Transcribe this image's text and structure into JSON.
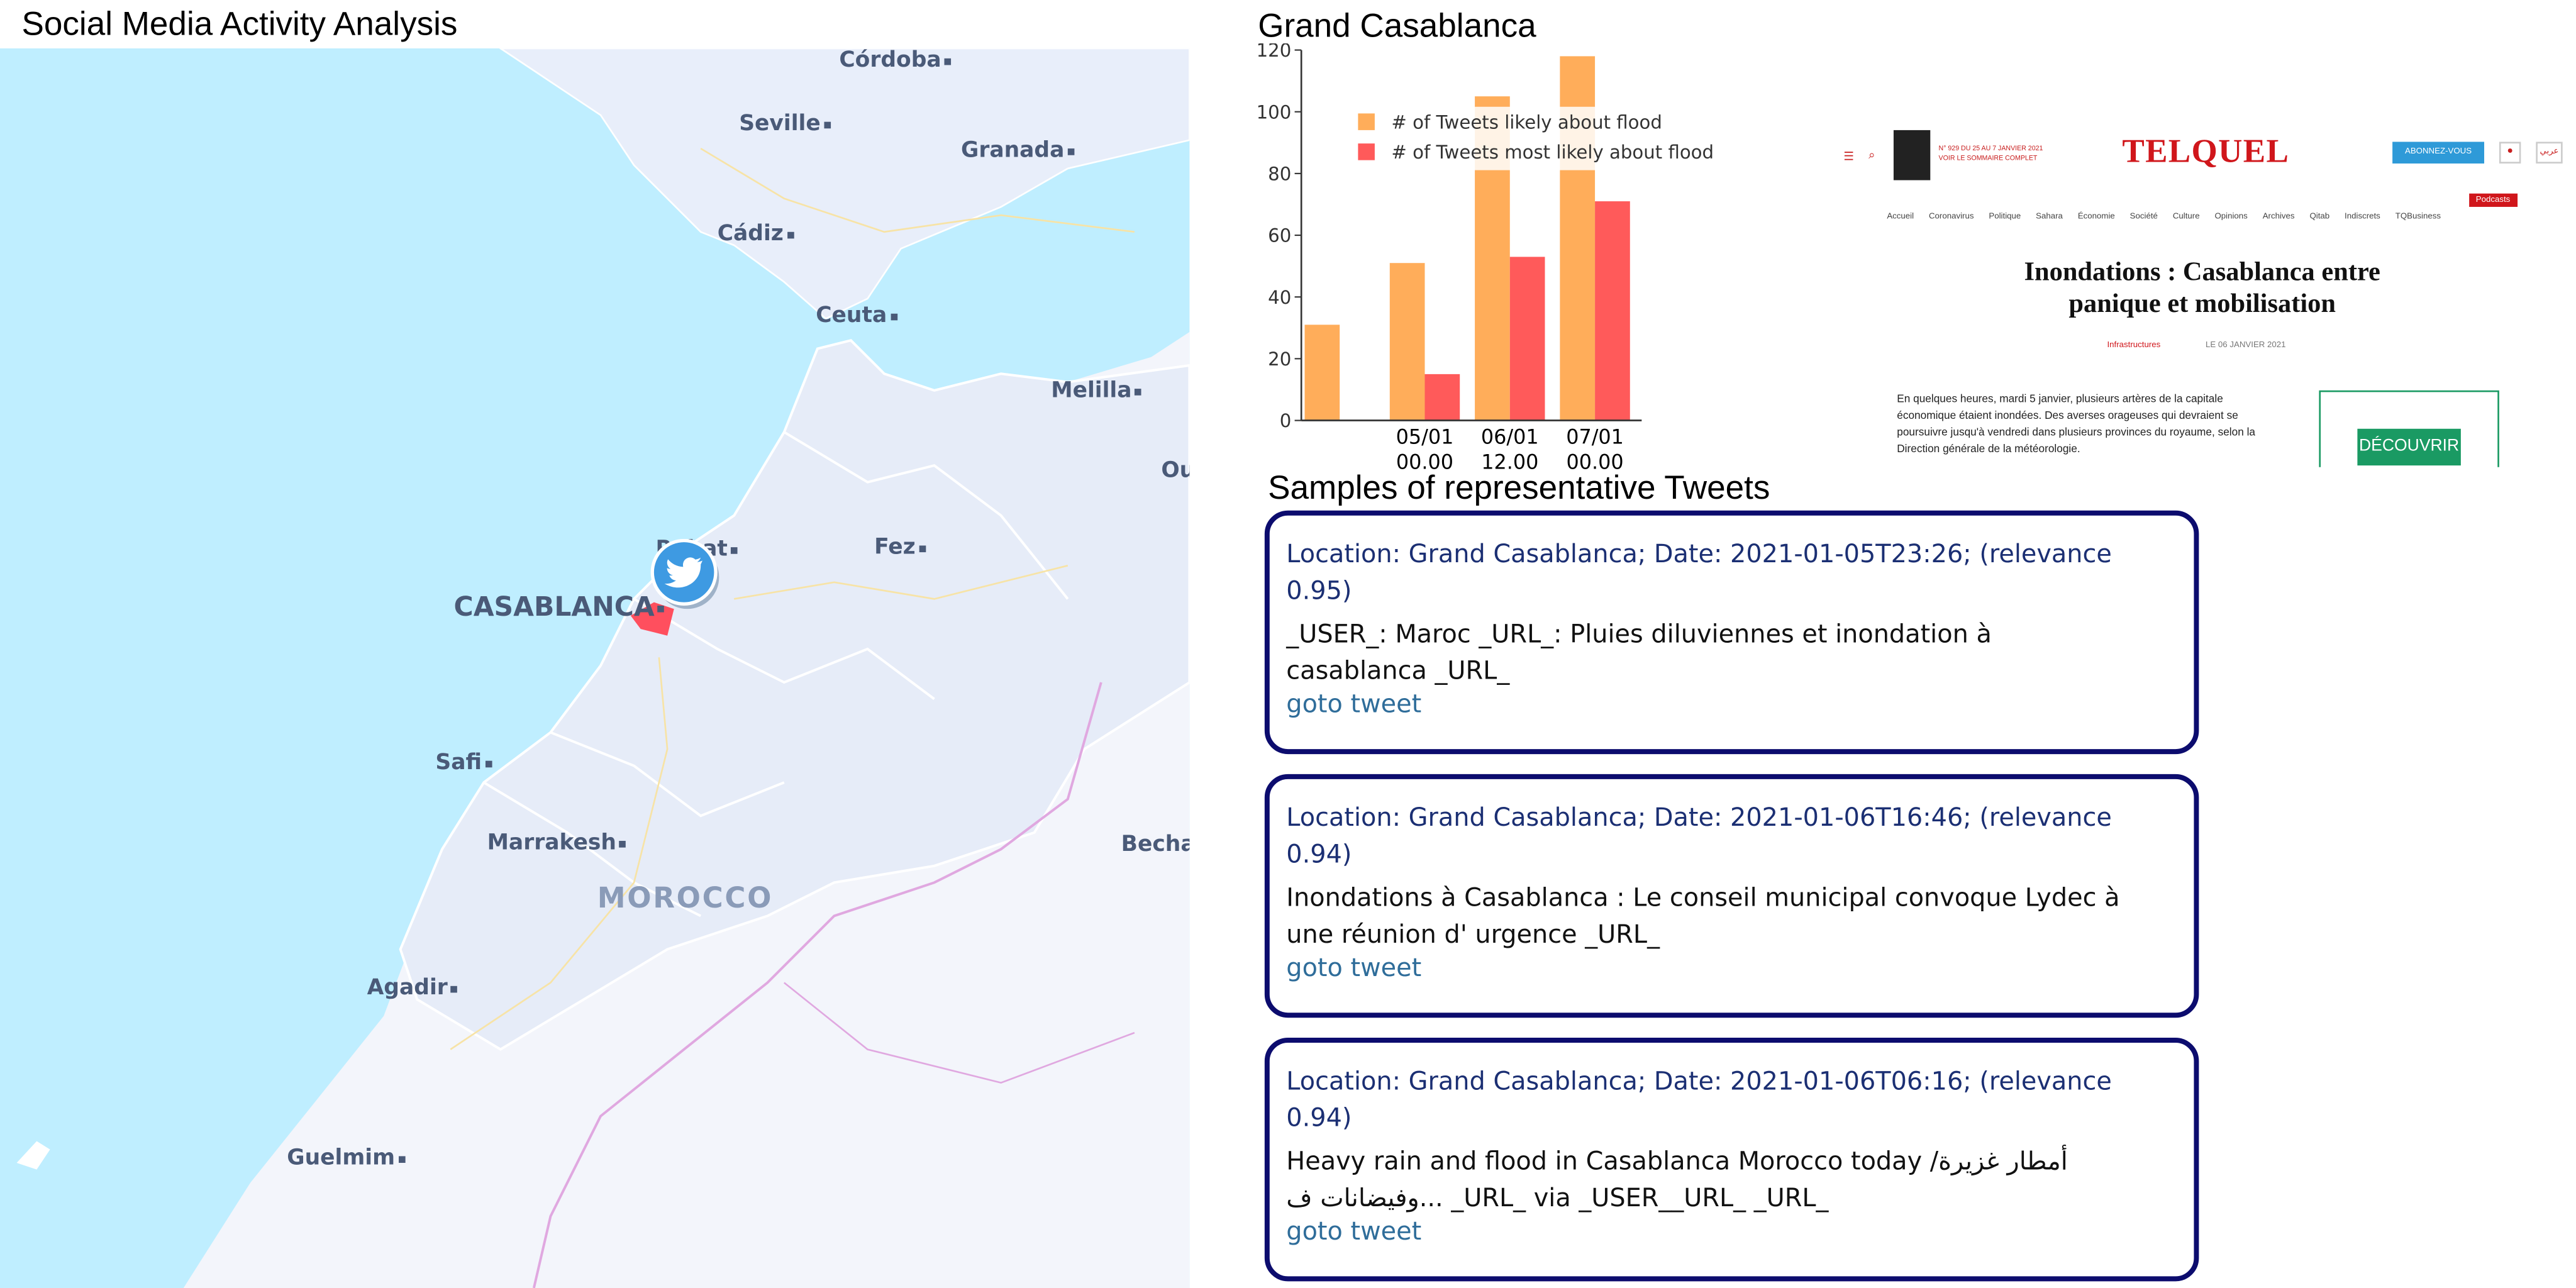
{
  "page": {
    "title": "Social Media Activity Analysis"
  },
  "map": {
    "cities": [
      {
        "name": "Córdoba",
        "id": "cordoba"
      },
      {
        "name": "Seville",
        "id": "seville"
      },
      {
        "name": "Granada",
        "id": "granada"
      },
      {
        "name": "Cádiz",
        "id": "cadiz"
      },
      {
        "name": "Ceuta",
        "id": "ceuta"
      },
      {
        "name": "Melilla",
        "id": "melilla"
      },
      {
        "name": "Ou",
        "id": "ou"
      },
      {
        "name": "Rabat",
        "id": "rabat"
      },
      {
        "name": "Fez",
        "id": "fez"
      },
      {
        "name": "CASABLANCA",
        "id": "casablanca"
      },
      {
        "name": "Safi",
        "id": "safi"
      },
      {
        "name": "Marrakesh",
        "id": "marrakesh"
      },
      {
        "name": "MOROCCO",
        "id": "morocco"
      },
      {
        "name": "Becha",
        "id": "becha"
      },
      {
        "name": "Agadir",
        "id": "agadir"
      },
      {
        "name": "Guelmim",
        "id": "guelmim"
      }
    ],
    "marker_icon": "twitter-bird-icon",
    "colors": {
      "sea": "#bfeeff",
      "land": "#e8eefa",
      "region": "#ff4f5e"
    }
  },
  "chart": {
    "title": "Grand Casablanca",
    "chart_data": {
      "type": "bar",
      "categories": [
        "",
        "05/01 00.00",
        "06/01 12.00",
        "07/01 00.00"
      ],
      "series": [
        {
          "name": "# of Tweets likely about flood",
          "color": "#ffad5a",
          "values": [
            31,
            51,
            105,
            118
          ]
        },
        {
          "name": "# of Tweets most likely about flood",
          "color": "#ff5a5a",
          "values": [
            0,
            15,
            53,
            71
          ]
        }
      ],
      "ylim": [
        0,
        120
      ],
      "yticks": [
        "0",
        "20",
        "40",
        "60",
        "80",
        "100",
        "120"
      ],
      "xlabel": "",
      "ylabel": "",
      "legend_position": "top-right"
    }
  },
  "article": {
    "brand": "TELQUEL",
    "issue_line1": "N° 929 DU 25 AU 7 JANVIER 2021",
    "issue_line2": "VOIR LE SOMMAIRE COMPLET",
    "subscribe": "ABONNEZ-VOUS",
    "arabic": "عربي",
    "nav": [
      "Accueil",
      "Coronavirus",
      "Politique",
      "Sahara",
      "Économie",
      "Société",
      "Culture",
      "Opinions",
      "Archives",
      "Qitab",
      "Indiscrets",
      "TQBusiness"
    ],
    "podcasts": "Podcasts",
    "headline_line1": "Inondations : Casablanca entre",
    "headline_line2": "panique et mobilisation",
    "category": "Infrastructures",
    "date": "LE 06 JANVIER 2021",
    "body_line1": "En quelques heures, mardi 5 janvier, plusieurs artères de la capitale",
    "body_line2": "économique étaient inondées. Des averses orageuses qui devraient se",
    "body_line3": "poursuivre jusqu'à vendredi dans plusieurs provinces du royaume, selon la",
    "body_line4": "Direction générale de la météorologie.",
    "ad_label": "DÉCOUVRIR"
  },
  "tweets": {
    "title": "Samples of representative Tweets",
    "items": [
      {
        "meta_line1": "Location: Grand Casablanca; Date: 2021-01-05T23:26; (relevance",
        "meta_line2": "0.95)",
        "text_line1": "_USER_: Maroc _URL_: Pluies diluviennes et inondation à",
        "text_line2": "casablanca _URL_",
        "link": "goto tweet"
      },
      {
        "meta_line1": "Location: Grand Casablanca; Date: 2021-01-06T16:46; (relevance",
        "meta_line2": "0.94)",
        "text_line1": "Inondations à Casablanca : Le conseil municipal convoque Lydec à",
        "text_line2": "une réunion d' urgence _URL_",
        "link": "goto tweet"
      },
      {
        "meta_line1": "Location: Grand Casablanca; Date: 2021-01-06T06:16; (relevance",
        "meta_line2": "0.94)",
        "text_line1": "Heavy rain and flood in Casablanca Morocco today /أمطار غزيرة",
        "text_line2": "وفيضانات ف... _URL_ via _USER__URL_ _URL_",
        "link": "goto tweet"
      }
    ]
  }
}
